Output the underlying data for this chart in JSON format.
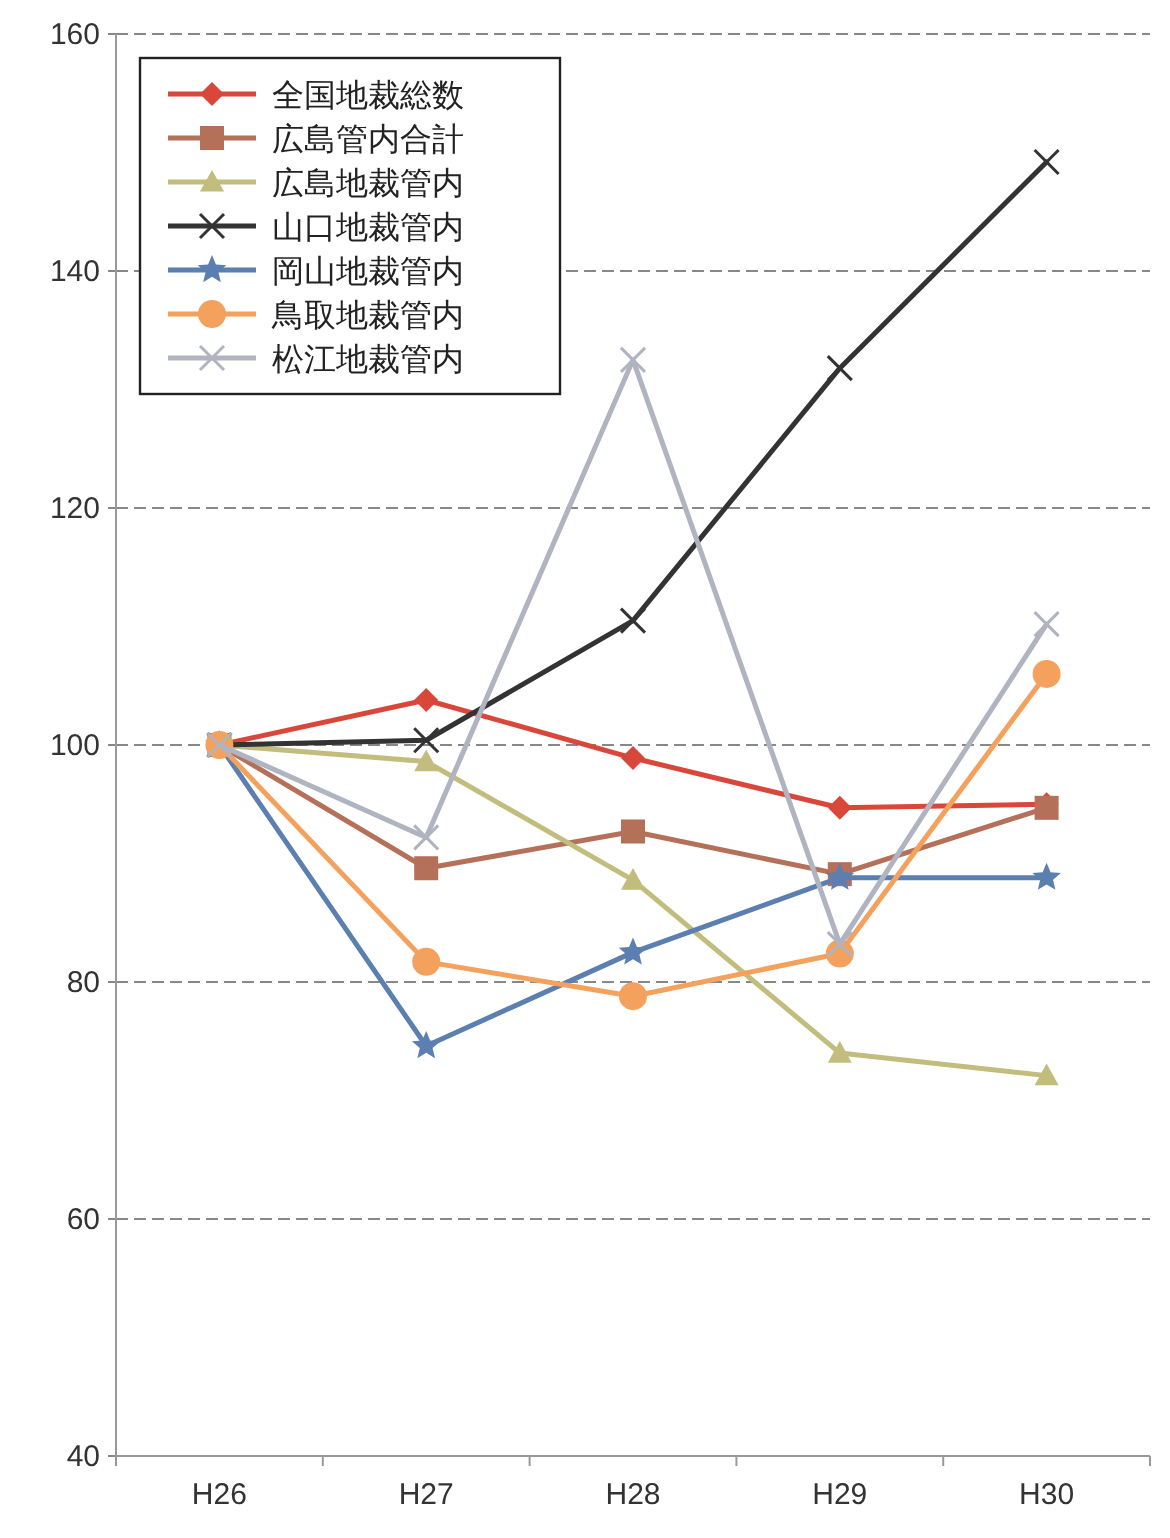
{
  "chart_data": {
    "type": "line",
    "categories": [
      "H26",
      "H27",
      "H28",
      "H29",
      "H30"
    ],
    "series": [
      {
        "name": "全国地裁総数",
        "color": "#d9473a",
        "marker": "diamond",
        "values": [
          100,
          103.8,
          98.9,
          94.7,
          95.0
        ]
      },
      {
        "name": "広島管内合計",
        "color": "#b5705a",
        "marker": "square",
        "values": [
          100,
          89.6,
          92.7,
          89.1,
          94.7
        ]
      },
      {
        "name": "広島地裁管内",
        "color": "#c2bd7c",
        "marker": "triangle",
        "values": [
          100,
          98.6,
          88.6,
          74.0,
          72.1
        ]
      },
      {
        "name": "山口地裁管内",
        "color": "#333333",
        "marker": "cross",
        "values": [
          100,
          100.4,
          110.5,
          131.8,
          149.2
        ]
      },
      {
        "name": "岡山地裁管内",
        "color": "#5b7fb0",
        "marker": "star",
        "values": [
          100,
          74.6,
          82.5,
          88.8,
          88.8
        ]
      },
      {
        "name": "鳥取地裁管内",
        "color": "#f4a15e",
        "marker": "circle",
        "values": [
          100,
          81.7,
          78.8,
          82.4,
          106.0
        ]
      },
      {
        "name": "松江地裁管内",
        "color": "#b0b4c0",
        "marker": "cross",
        "values": [
          100,
          92.2,
          132.5,
          83.2,
          110.2
        ]
      }
    ],
    "ylim": [
      40,
      160
    ],
    "yticks": [
      40,
      60,
      80,
      100,
      120,
      140,
      160
    ],
    "grid": "y",
    "legend": "top left"
  }
}
